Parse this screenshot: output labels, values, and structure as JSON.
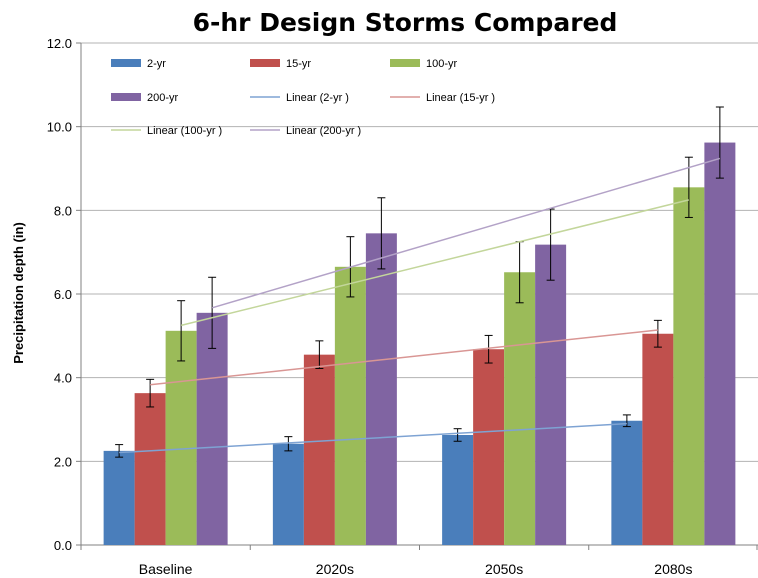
{
  "chart_data": {
    "type": "bar",
    "title": "6-hr Design Storms Compared",
    "xlabel": "",
    "ylabel": "Precipitation depth (in)",
    "ylim": [
      0,
      12
    ],
    "yticks": [
      "0.0",
      "2.0",
      "4.0",
      "6.0",
      "8.0",
      "10.0",
      "12.0"
    ],
    "categories": [
      "Baseline",
      "2020s",
      "2050s",
      "2080s"
    ],
    "grid": "horizontal",
    "legend_position": "top-left, inside plot",
    "series": [
      {
        "name": "2-yr",
        "color": "#4a7ebb",
        "values": [
          2.25,
          2.42,
          2.63,
          2.97
        ],
        "error": [
          0.15,
          0.17,
          0.15,
          0.14
        ]
      },
      {
        "name": "15-yr",
        "color": "#c0504d",
        "values": [
          3.63,
          4.55,
          4.68,
          5.05
        ],
        "error": [
          0.33,
          0.33,
          0.33,
          0.32
        ]
      },
      {
        "name": "100-yr",
        "color": "#9bbb59",
        "values": [
          5.12,
          6.65,
          6.52,
          8.55
        ],
        "error": [
          0.72,
          0.72,
          0.73,
          0.72
        ]
      },
      {
        "name": "200-yr",
        "color": "#8064a2",
        "values": [
          5.55,
          7.45,
          7.18,
          9.62
        ],
        "error": [
          0.85,
          0.85,
          0.85,
          0.85
        ]
      }
    ],
    "trendlines": [
      {
        "name": "Linear (2-yr )",
        "series": "2-yr",
        "color": "#7ea3d3",
        "values": [
          2.21,
          2.44,
          2.67,
          2.9
        ]
      },
      {
        "name": "Linear (15-yr )",
        "series": "15-yr",
        "color": "#d99694",
        "values": [
          3.83,
          4.27,
          4.71,
          5.14
        ]
      },
      {
        "name": "Linear (100-yr )",
        "series": "100-yr",
        "color": "#c3d69b",
        "values": [
          5.25,
          6.25,
          7.25,
          8.25
        ]
      },
      {
        "name": "Linear (200-yr )",
        "series": "200-yr",
        "color": "#b3a2c7",
        "values": [
          5.67,
          6.86,
          8.05,
          9.24
        ]
      }
    ]
  }
}
